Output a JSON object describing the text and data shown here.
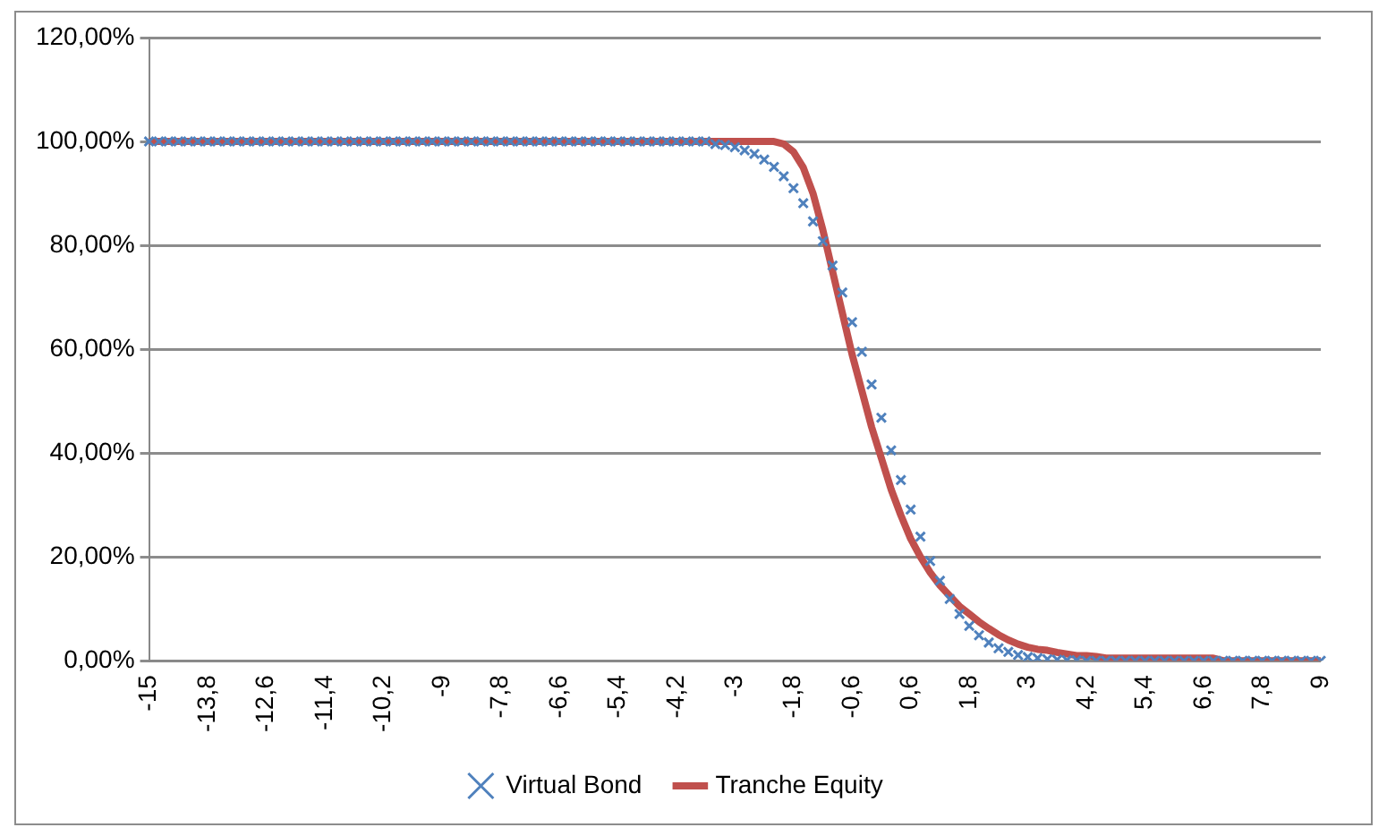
{
  "chart_data": {
    "type": "line",
    "categories": [
      "-15",
      null,
      null,
      null,
      null,
      null,
      "-13,8",
      null,
      null,
      null,
      null,
      null,
      "-12,6",
      null,
      null,
      null,
      null,
      null,
      "-11,4",
      null,
      null,
      null,
      null,
      null,
      "-10,2",
      null,
      null,
      null,
      null,
      null,
      "-9",
      null,
      null,
      null,
      null,
      null,
      "-7,8",
      null,
      null,
      null,
      null,
      null,
      "-6,6",
      null,
      null,
      null,
      null,
      null,
      "-5,4",
      null,
      null,
      null,
      null,
      null,
      "-4,2",
      null,
      null,
      null,
      null,
      null,
      "-3",
      null,
      null,
      null,
      null,
      null,
      "-1,8",
      null,
      null,
      null,
      null,
      null,
      "-0,6",
      null,
      null,
      null,
      null,
      null,
      "0,6",
      null,
      null,
      null,
      null,
      null,
      "1,8",
      null,
      null,
      null,
      null,
      null,
      "3",
      null,
      null,
      null,
      null,
      null,
      "4,2",
      null,
      null,
      null,
      null,
      null,
      "5,4",
      null,
      null,
      null,
      null,
      null,
      "6,6",
      null,
      null,
      null,
      null,
      null,
      "7,8",
      null,
      null,
      null,
      null,
      null,
      "9"
    ],
    "series": [
      {
        "name": "Virtual Bond",
        "type": "scatter",
        "marker": "cross",
        "color": "#4f81bd",
        "values": [
          100,
          100,
          100,
          100,
          100,
          100,
          100,
          100,
          100,
          100,
          100,
          100,
          100,
          100,
          100,
          100,
          100,
          100,
          100,
          100,
          100,
          100,
          100,
          100,
          100,
          100,
          100,
          100,
          100,
          100,
          100,
          100,
          100,
          100,
          100,
          100,
          100,
          100,
          100,
          100,
          100,
          100,
          100,
          100,
          100,
          100,
          100,
          100,
          100,
          100,
          100,
          100,
          100,
          100,
          100,
          100,
          100,
          100,
          99.5,
          99.3,
          98.9,
          98.3,
          97.6,
          96.5,
          95.1,
          93.3,
          91.0,
          88.1,
          84.6,
          80.8,
          76.1,
          70.9,
          65.2,
          59.5,
          53.2,
          46.8,
          40.5,
          34.8,
          29.1,
          23.9,
          19.2,
          15.4,
          11.9,
          9.0,
          6.7,
          4.9,
          3.5,
          2.4,
          1.7,
          1.1,
          0.7,
          0.5,
          0.3,
          0.2,
          0.1,
          0.1,
          0,
          0,
          0,
          0,
          0,
          0,
          0,
          0,
          0,
          0,
          0,
          0,
          0,
          0,
          0,
          0,
          0,
          0,
          0,
          0,
          0,
          0,
          0,
          0,
          0
        ]
      },
      {
        "name": "Tranche Equity",
        "marker": "none",
        "line_style": "solid",
        "color": "#c0504d",
        "values": [
          100,
          100,
          100,
          100,
          100,
          100,
          100,
          100,
          100,
          100,
          100,
          100,
          100,
          100,
          100,
          100,
          100,
          100,
          100,
          100,
          100,
          100,
          100,
          100,
          100,
          100,
          100,
          100,
          100,
          100,
          100,
          100,
          100,
          100,
          100,
          100,
          100,
          100,
          100,
          100,
          100,
          100,
          100,
          100,
          100,
          100,
          100,
          100,
          100,
          100,
          100,
          100,
          100,
          100,
          100,
          100,
          100,
          100,
          100,
          100,
          100,
          100,
          100,
          100,
          100,
          99.5,
          98,
          95,
          90,
          83,
          75,
          67,
          59,
          52,
          45,
          39,
          33,
          28,
          23.5,
          20,
          17,
          14.5,
          12.5,
          10.5,
          9,
          7.5,
          6.2,
          5,
          4,
          3.2,
          2.6,
          2.2,
          2,
          1.6,
          1.3,
          1,
          1,
          0.8,
          0.5,
          0.5,
          0.5,
          0.5,
          0.5,
          0.5,
          0.5,
          0.5,
          0.5,
          0.5,
          0.5,
          0.5,
          0,
          0,
          0,
          0,
          0,
          0,
          0,
          0,
          0,
          0,
          0
        ]
      }
    ],
    "ylim": [
      0,
      120
    ],
    "yticks": [
      {
        "value": 0,
        "label": "0,00%"
      },
      {
        "value": 20,
        "label": "20,00%"
      },
      {
        "value": 40,
        "label": "40,00%"
      },
      {
        "value": 60,
        "label": "60,00%"
      },
      {
        "value": 80,
        "label": "80,00%"
      },
      {
        "value": 100,
        "label": "100,00%"
      },
      {
        "value": 120,
        "label": "120,00%"
      }
    ],
    "grid": "y",
    "legend": "bottom"
  }
}
